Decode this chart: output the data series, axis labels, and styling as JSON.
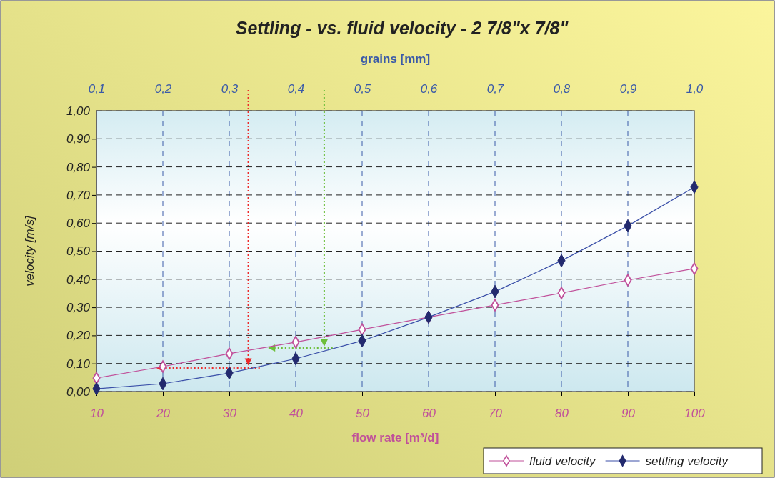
{
  "chart_data": {
    "type": "line",
    "title": "Settling - vs. fluid velocity - 2 7/8\"x 7/8\"",
    "xlabel": "flow rate [m³/d]",
    "ylabel": "velocity [m/s]",
    "x2label": "grains [mm]",
    "x": [
      10,
      20,
      30,
      40,
      50,
      60,
      70,
      80,
      90,
      100
    ],
    "xlim": [
      10,
      100
    ],
    "xticks": [
      10,
      20,
      30,
      40,
      50,
      60,
      70,
      80,
      90,
      100
    ],
    "x2lim": [
      0.1,
      1.0
    ],
    "x2ticks": [
      {
        "value": 0.1,
        "label": "0,1"
      },
      {
        "value": 0.2,
        "label": "0,2"
      },
      {
        "value": 0.3,
        "label": "0,3"
      },
      {
        "value": 0.4,
        "label": "0,4"
      },
      {
        "value": 0.5,
        "label": "0,5"
      },
      {
        "value": 0.6,
        "label": "0,6"
      },
      {
        "value": 0.7,
        "label": "0,7"
      },
      {
        "value": 0.8,
        "label": "0,8"
      },
      {
        "value": 0.9,
        "label": "0,9"
      },
      {
        "value": 1.0,
        "label": "1,0"
      }
    ],
    "ylim": [
      0,
      1
    ],
    "yticks": [
      {
        "value": 0,
        "label": "0,00"
      },
      {
        "value": 0.1,
        "label": "0,10"
      },
      {
        "value": 0.2,
        "label": "0,20"
      },
      {
        "value": 0.3,
        "label": "0,30"
      },
      {
        "value": 0.4,
        "label": "0,40"
      },
      {
        "value": 0.5,
        "label": "0,50"
      },
      {
        "value": 0.6,
        "label": "0,60"
      },
      {
        "value": 0.7,
        "label": "0,70"
      },
      {
        "value": 0.8,
        "label": "0,80"
      },
      {
        "value": 0.9,
        "label": "0,90"
      },
      {
        "value": 1,
        "label": "1,00"
      }
    ],
    "series": [
      {
        "name": "fluid velocity",
        "color": "#c0509a",
        "values": [
          0.048,
          0.089,
          0.135,
          0.176,
          0.221,
          0.265,
          0.308,
          0.351,
          0.397,
          0.438
        ]
      },
      {
        "name": "settling velocity",
        "color": "#232a6e",
        "values": [
          0.01,
          0.028,
          0.066,
          0.117,
          0.181,
          0.265,
          0.356,
          0.466,
          0.59,
          0.728
        ]
      }
    ],
    "grid": true,
    "legend": "bottom right",
    "marker": "diamond",
    "line_style": "solid"
  }
}
